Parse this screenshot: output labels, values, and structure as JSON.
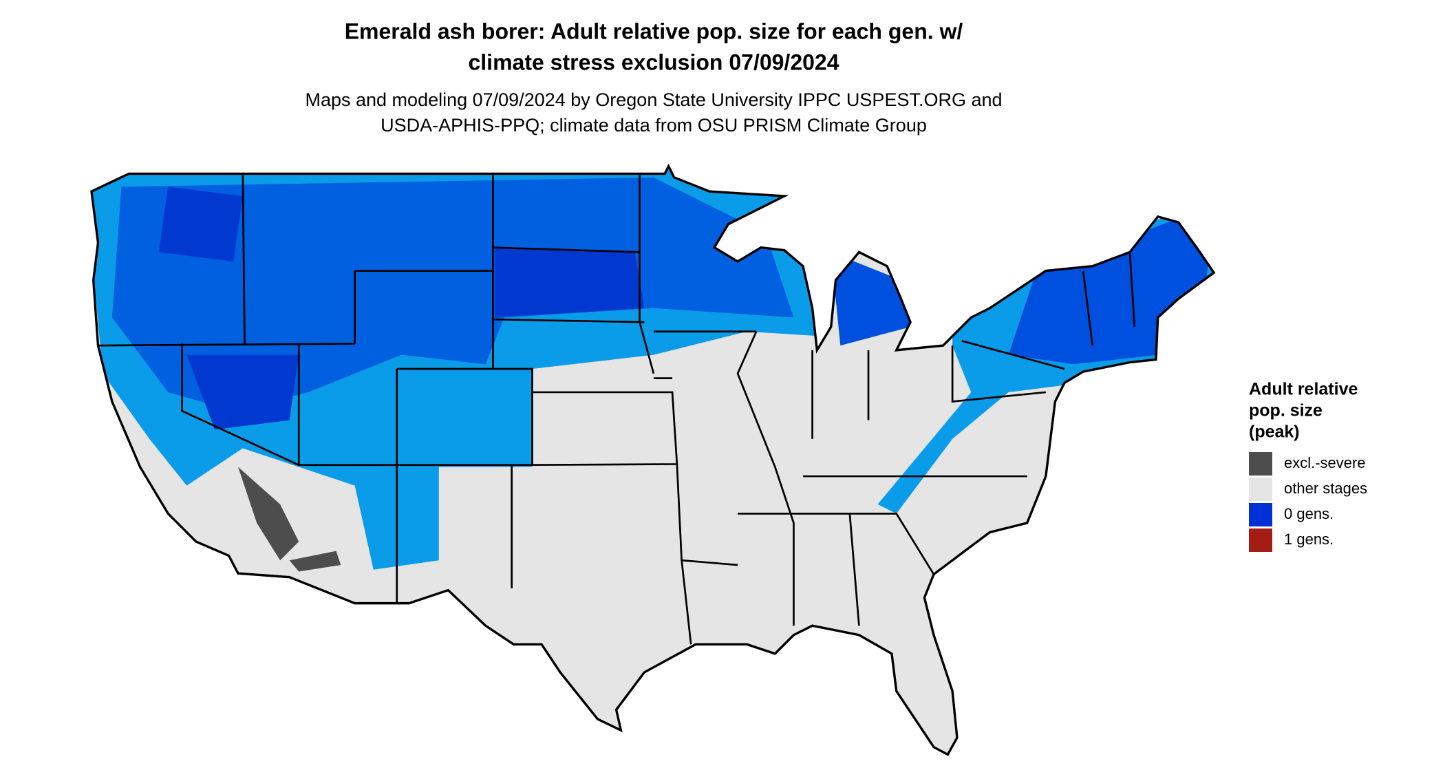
{
  "header": {
    "title": [
      "Emerald ash borer: Adult relative pop. size for each gen. w/",
      "climate stress exclusion 07/09/2024"
    ],
    "subtitle": [
      "Maps and modeling 07/09/2024 by Oregon State University IPPC USPEST.ORG and",
      "USDA-APHIS-PPQ; climate data from OSU PRISM Climate Group"
    ]
  },
  "legend": {
    "title": [
      "Adult relative",
      "pop. size",
      "(peak)"
    ],
    "items": [
      {
        "label": "excl.-severe",
        "color": "#4d4d4d"
      },
      {
        "label": "other stages",
        "color": "#e5e5e5"
      },
      {
        "label": "0 gens.",
        "color": "#0030d8"
      },
      {
        "label": "1 gens.",
        "color": "#a31d14"
      }
    ]
  }
}
